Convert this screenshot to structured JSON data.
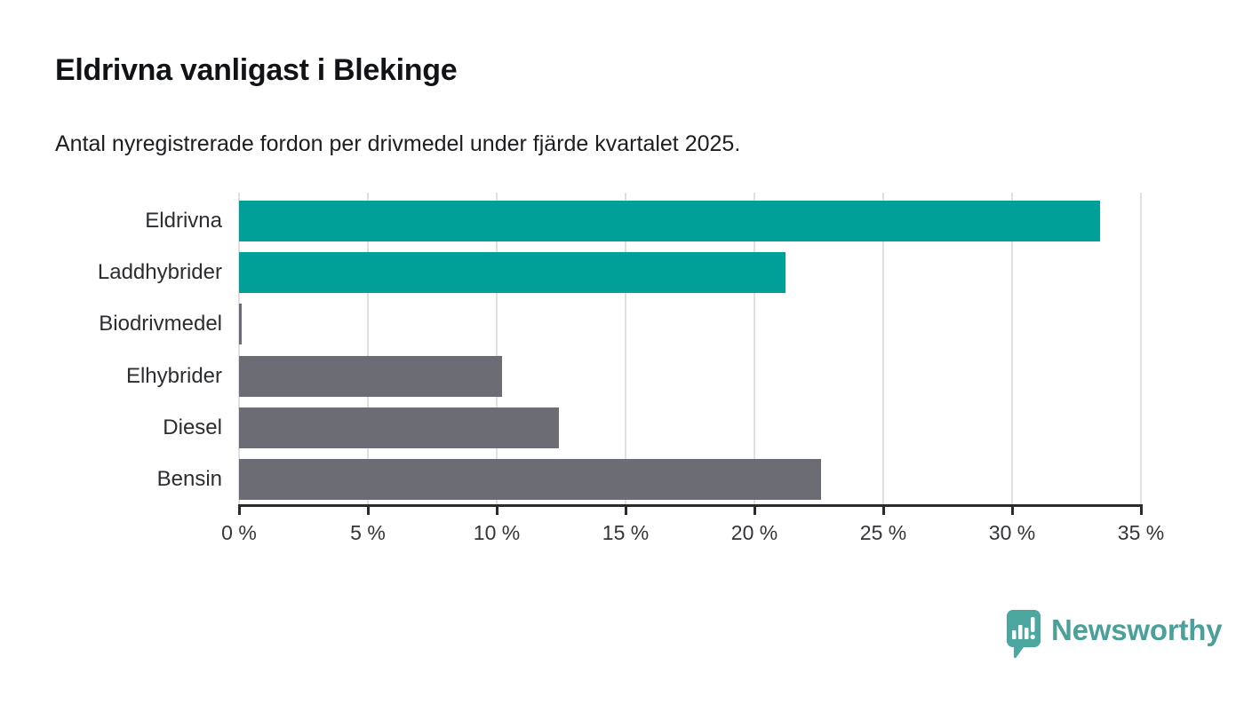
{
  "title": "Eldrivna vanligast i Blekinge",
  "subtitle": "Antal nyregistrerade fordon per drivmedel under fjärde kvartalet 2025.",
  "chart_data": {
    "type": "bar",
    "orientation": "horizontal",
    "title": "Eldrivna vanligast i Blekinge",
    "subtitle": "Antal nyregistrerade fordon per drivmedel under fjärde kvartalet 2025.",
    "categories": [
      "Eldrivna",
      "Laddhybrider",
      "Biodrivmedel",
      "Elhybrider",
      "Diesel",
      "Bensin"
    ],
    "values": [
      33.4,
      21.2,
      0.1,
      10.2,
      12.4,
      22.6
    ],
    "unit": "%",
    "xlim": [
      0,
      35
    ],
    "x_tick_step": 5,
    "x_tick_labels": [
      "0 %",
      "5 %",
      "10 %",
      "15 %",
      "20 %",
      "25 %",
      "30 %",
      "35 %"
    ],
    "bar_colors": [
      "#00a099",
      "#00a099",
      "#6c6c74",
      "#6c6c74",
      "#6c6c74",
      "#6c6c74"
    ],
    "grid": "vertical",
    "legend": "none"
  },
  "colors": {
    "accent_teal": "#00a099",
    "neutral_gray": "#6c6c74",
    "axis": "#2b2b2b",
    "gridline": "#e0e0e0",
    "logo_teal": "#4ba09a"
  },
  "branding": {
    "logo_text": "Newsworthy",
    "logo_icon": "newsworthy-chart-bubble-icon"
  }
}
